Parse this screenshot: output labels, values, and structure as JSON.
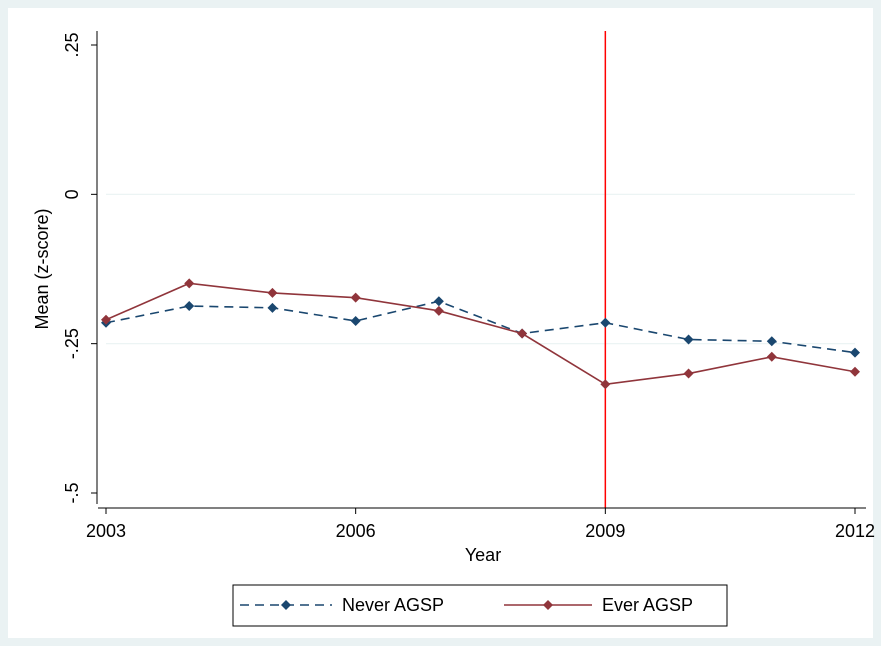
{
  "chart_data": {
    "type": "line",
    "title": "",
    "xlabel": "Year",
    "ylabel": "Mean (z-score)",
    "xlim": [
      2003,
      2012
    ],
    "ylim": [
      -0.5,
      0.25
    ],
    "x_ticks": [
      2003,
      2006,
      2009,
      2012
    ],
    "x_tick_labels": [
      "2003",
      "2006",
      "2009",
      "2012"
    ],
    "y_ticks": [
      -0.5,
      -0.25,
      0,
      0.25
    ],
    "y_tick_labels": [
      "-.5",
      "-.25",
      "0",
      ".25"
    ],
    "grid": "horizontal",
    "legend_position": "bottom",
    "x": [
      2003,
      2004,
      2005,
      2006,
      2007,
      2008,
      2009,
      2010,
      2011,
      2012
    ],
    "series": [
      {
        "name": "Never AGSP",
        "color": "#1a476f",
        "line_style": "dashed",
        "marker": "diamond",
        "values": [
          -0.215,
          -0.187,
          -0.19,
          -0.212,
          -0.179,
          -0.233,
          -0.215,
          -0.243,
          -0.246,
          -0.265
        ]
      },
      {
        "name": "Ever AGSP",
        "color": "#90353b",
        "line_style": "solid",
        "marker": "diamond",
        "values": [
          -0.21,
          -0.149,
          -0.165,
          -0.173,
          -0.195,
          -0.233,
          -0.318,
          -0.3,
          -0.272,
          -0.297
        ]
      }
    ],
    "reference_line": {
      "axis": "x",
      "value": 2009,
      "color": "#ff0000"
    }
  },
  "colors": {
    "background": "#eaf2f3",
    "plot_background": "#ffffff",
    "grid": "#eaf2f3"
  }
}
